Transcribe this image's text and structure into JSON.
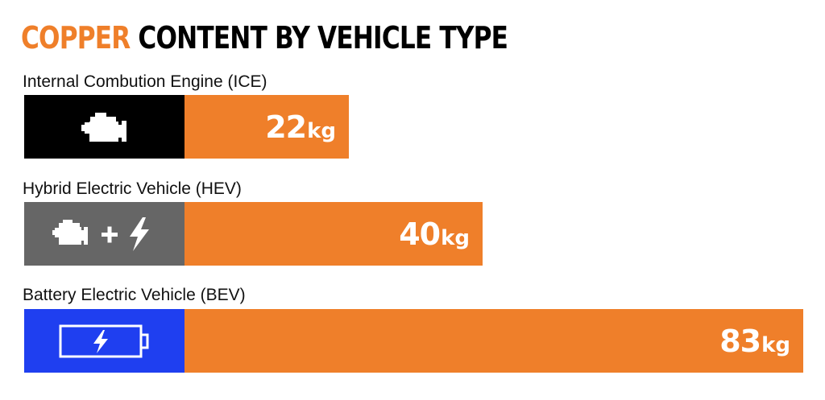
{
  "title": {
    "accent": "COPPER",
    "rest": " CONTENT BY VEHICLE TYPE"
  },
  "chart_data": {
    "type": "bar",
    "orientation": "horizontal",
    "title": "COPPER CONTENT BY VEHICLE TYPE",
    "unit": "kg",
    "categories": [
      "Internal Combution Engine (ICE)",
      "Hybrid Electric Vehicle (HEV)",
      "Battery Electric Vehicle (BEV)"
    ],
    "values": [
      22,
      40,
      83
    ],
    "value_labels": [
      "22",
      "40",
      "83"
    ],
    "icons": [
      "engine-icon",
      "engine-plus-lightning-icon",
      "battery-lightning-icon"
    ],
    "icon_block_colors": [
      "#000000",
      "#666666",
      "#1f3ff0"
    ],
    "bar_color": "#ef7f2a",
    "xlim": [
      0,
      83
    ]
  }
}
